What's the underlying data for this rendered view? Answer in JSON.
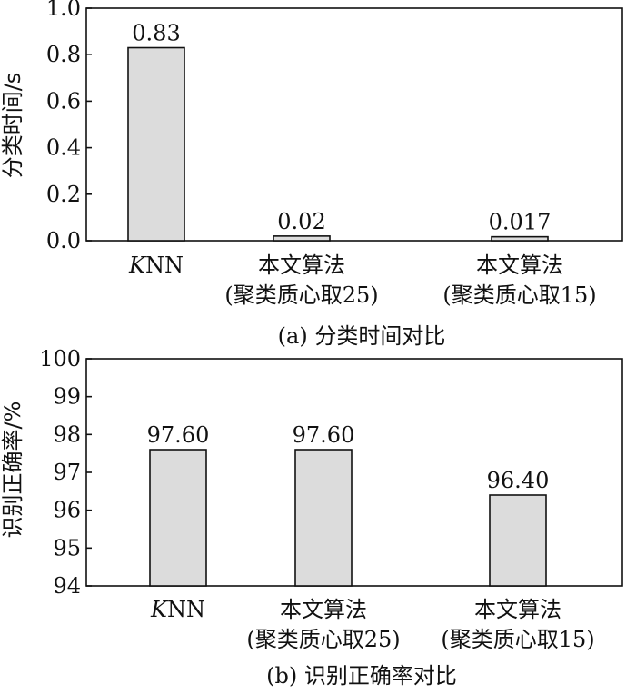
{
  "chart_data": [
    {
      "type": "bar",
      "caption": "(a) 分类时间对比",
      "ylabel": "分类时间/s",
      "ylim": [
        0,
        1.0
      ],
      "yticks": [
        "0.0",
        "0.2",
        "0.4",
        "0.6",
        "0.8",
        "1.0"
      ],
      "categories": [
        {
          "line1": "KNN",
          "line2": ""
        },
        {
          "line1": "本文算法",
          "line2": "(聚类质心取25)"
        },
        {
          "line1": "本文算法",
          "line2": "(聚类质心取15)"
        }
      ],
      "values": [
        0.83,
        0.02,
        0.017
      ],
      "value_labels": [
        "0.83",
        "0.02",
        "0.017"
      ]
    },
    {
      "type": "bar",
      "caption": "(b) 识别正确率对比",
      "ylabel": "识别正确率/%",
      "ylim": [
        94,
        100
      ],
      "yticks": [
        "94",
        "95",
        "96",
        "97",
        "98",
        "99",
        "100"
      ],
      "categories": [
        {
          "line1": "KNN",
          "line2": ""
        },
        {
          "line1": "本文算法",
          "line2": "(聚类质心取25)"
        },
        {
          "line1": "本文算法",
          "line2": "(聚类质心取15)"
        }
      ],
      "values": [
        97.6,
        97.6,
        96.4
      ],
      "value_labels": [
        "97.60",
        "97.60",
        "96.40"
      ]
    }
  ]
}
